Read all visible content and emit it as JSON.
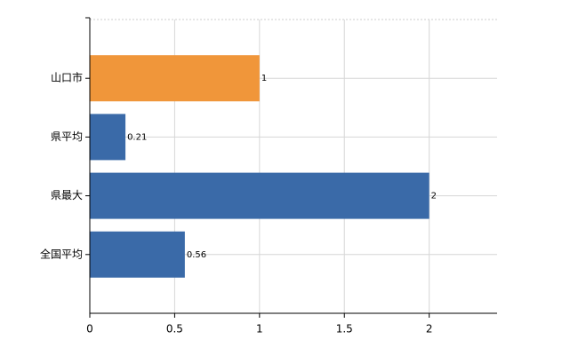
{
  "chart_data": {
    "type": "bar",
    "orientation": "horizontal",
    "categories": [
      "山口市",
      "県平均",
      "県最大",
      "全国平均"
    ],
    "values": [
      1,
      0.21,
      2,
      0.56
    ],
    "colors": [
      "#f0963a",
      "#3a6aa8",
      "#3a6aa8",
      "#3a6aa8"
    ],
    "xlim": [
      0,
      2.4
    ],
    "xticks": [
      0,
      0.5,
      1,
      1.5,
      2
    ],
    "grid": true
  }
}
